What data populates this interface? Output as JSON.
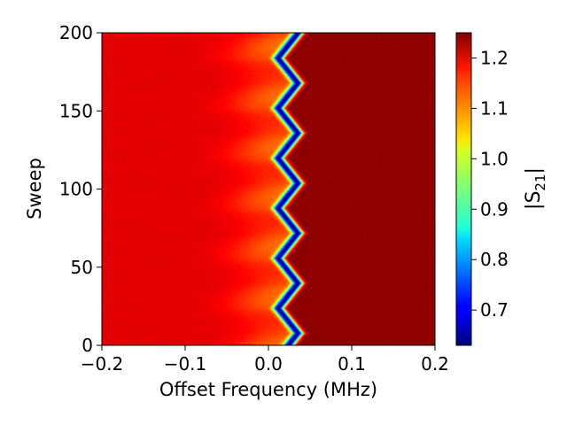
{
  "chart_data": {
    "type": "heatmap",
    "title": "",
    "xlabel": "Offset Frequency (MHz)",
    "ylabel": "Sweep",
    "xlim": [
      -0.2,
      0.2
    ],
    "ylim": [
      0,
      200
    ],
    "xticks": [
      -0.2,
      -0.1,
      0.0,
      0.1,
      0.2
    ],
    "xtick_labels": [
      "−0.2",
      "−0.1",
      "0.0",
      "0.1",
      "0.2"
    ],
    "yticks": [
      0,
      50,
      100,
      150,
      200
    ],
    "ytick_labels": [
      "0",
      "50",
      "100",
      "150",
      "200"
    ],
    "colormap": "jet",
    "colorbar": {
      "label": "|S21|",
      "label_main": "|S",
      "label_sub": "21",
      "label_end": "|",
      "range": [
        0.63,
        1.25
      ],
      "ticks": [
        0.7,
        0.8,
        0.9,
        1.0,
        1.1,
        1.2
      ],
      "tick_labels": [
        "0.7",
        "0.8",
        "0.9",
        "1.0",
        "1.1",
        "1.2"
      ]
    },
    "resonance_dip": {
      "center_MHz": 0.023,
      "min_value": 0.63,
      "oscillation_amplitude_MHz": 0.012,
      "oscillation_period_sweeps": 32,
      "baseline_left": 1.19,
      "baseline_right": 1.24
    }
  }
}
